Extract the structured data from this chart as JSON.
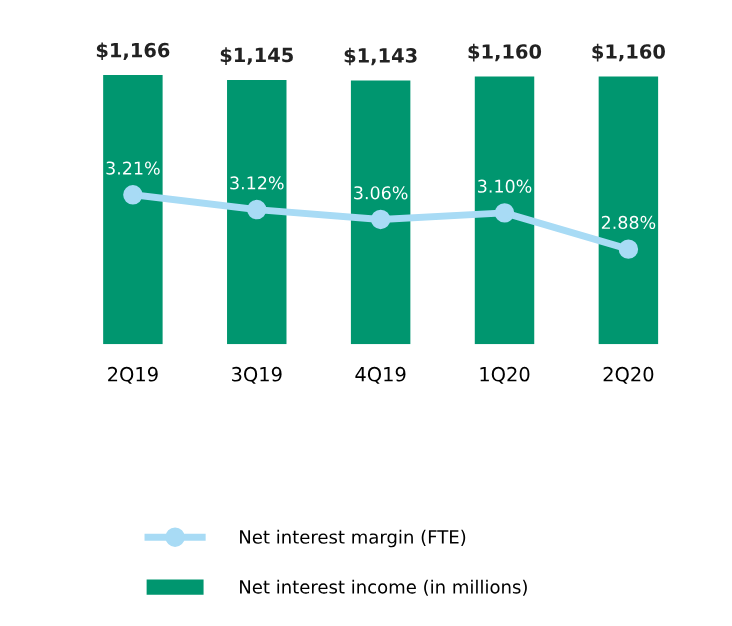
{
  "chart_data": {
    "type": "bar",
    "categories": [
      "2Q19",
      "3Q19",
      "4Q19",
      "1Q20",
      "2Q20"
    ],
    "legend": "bottom",
    "grid": false,
    "series": [
      {
        "name": "Net interest income (in millions)",
        "color": "#00966f",
        "values": [
          1166,
          1145,
          1143,
          1160,
          1160
        ],
        "value_labels": [
          "$1,166",
          "$1,145",
          "$1,143",
          "$1,160",
          "$1,160"
        ]
      },
      {
        "name": "Net interest margin (FTE)",
        "type": "line",
        "axis": "y2",
        "color": "#a8dbf5",
        "marker": "circle",
        "values": [
          3.21,
          3.12,
          3.06,
          3.1,
          2.88
        ],
        "value_labels": [
          "3.21%",
          "3.12%",
          "3.06%",
          "3.10%",
          "2.88%"
        ]
      }
    ]
  }
}
